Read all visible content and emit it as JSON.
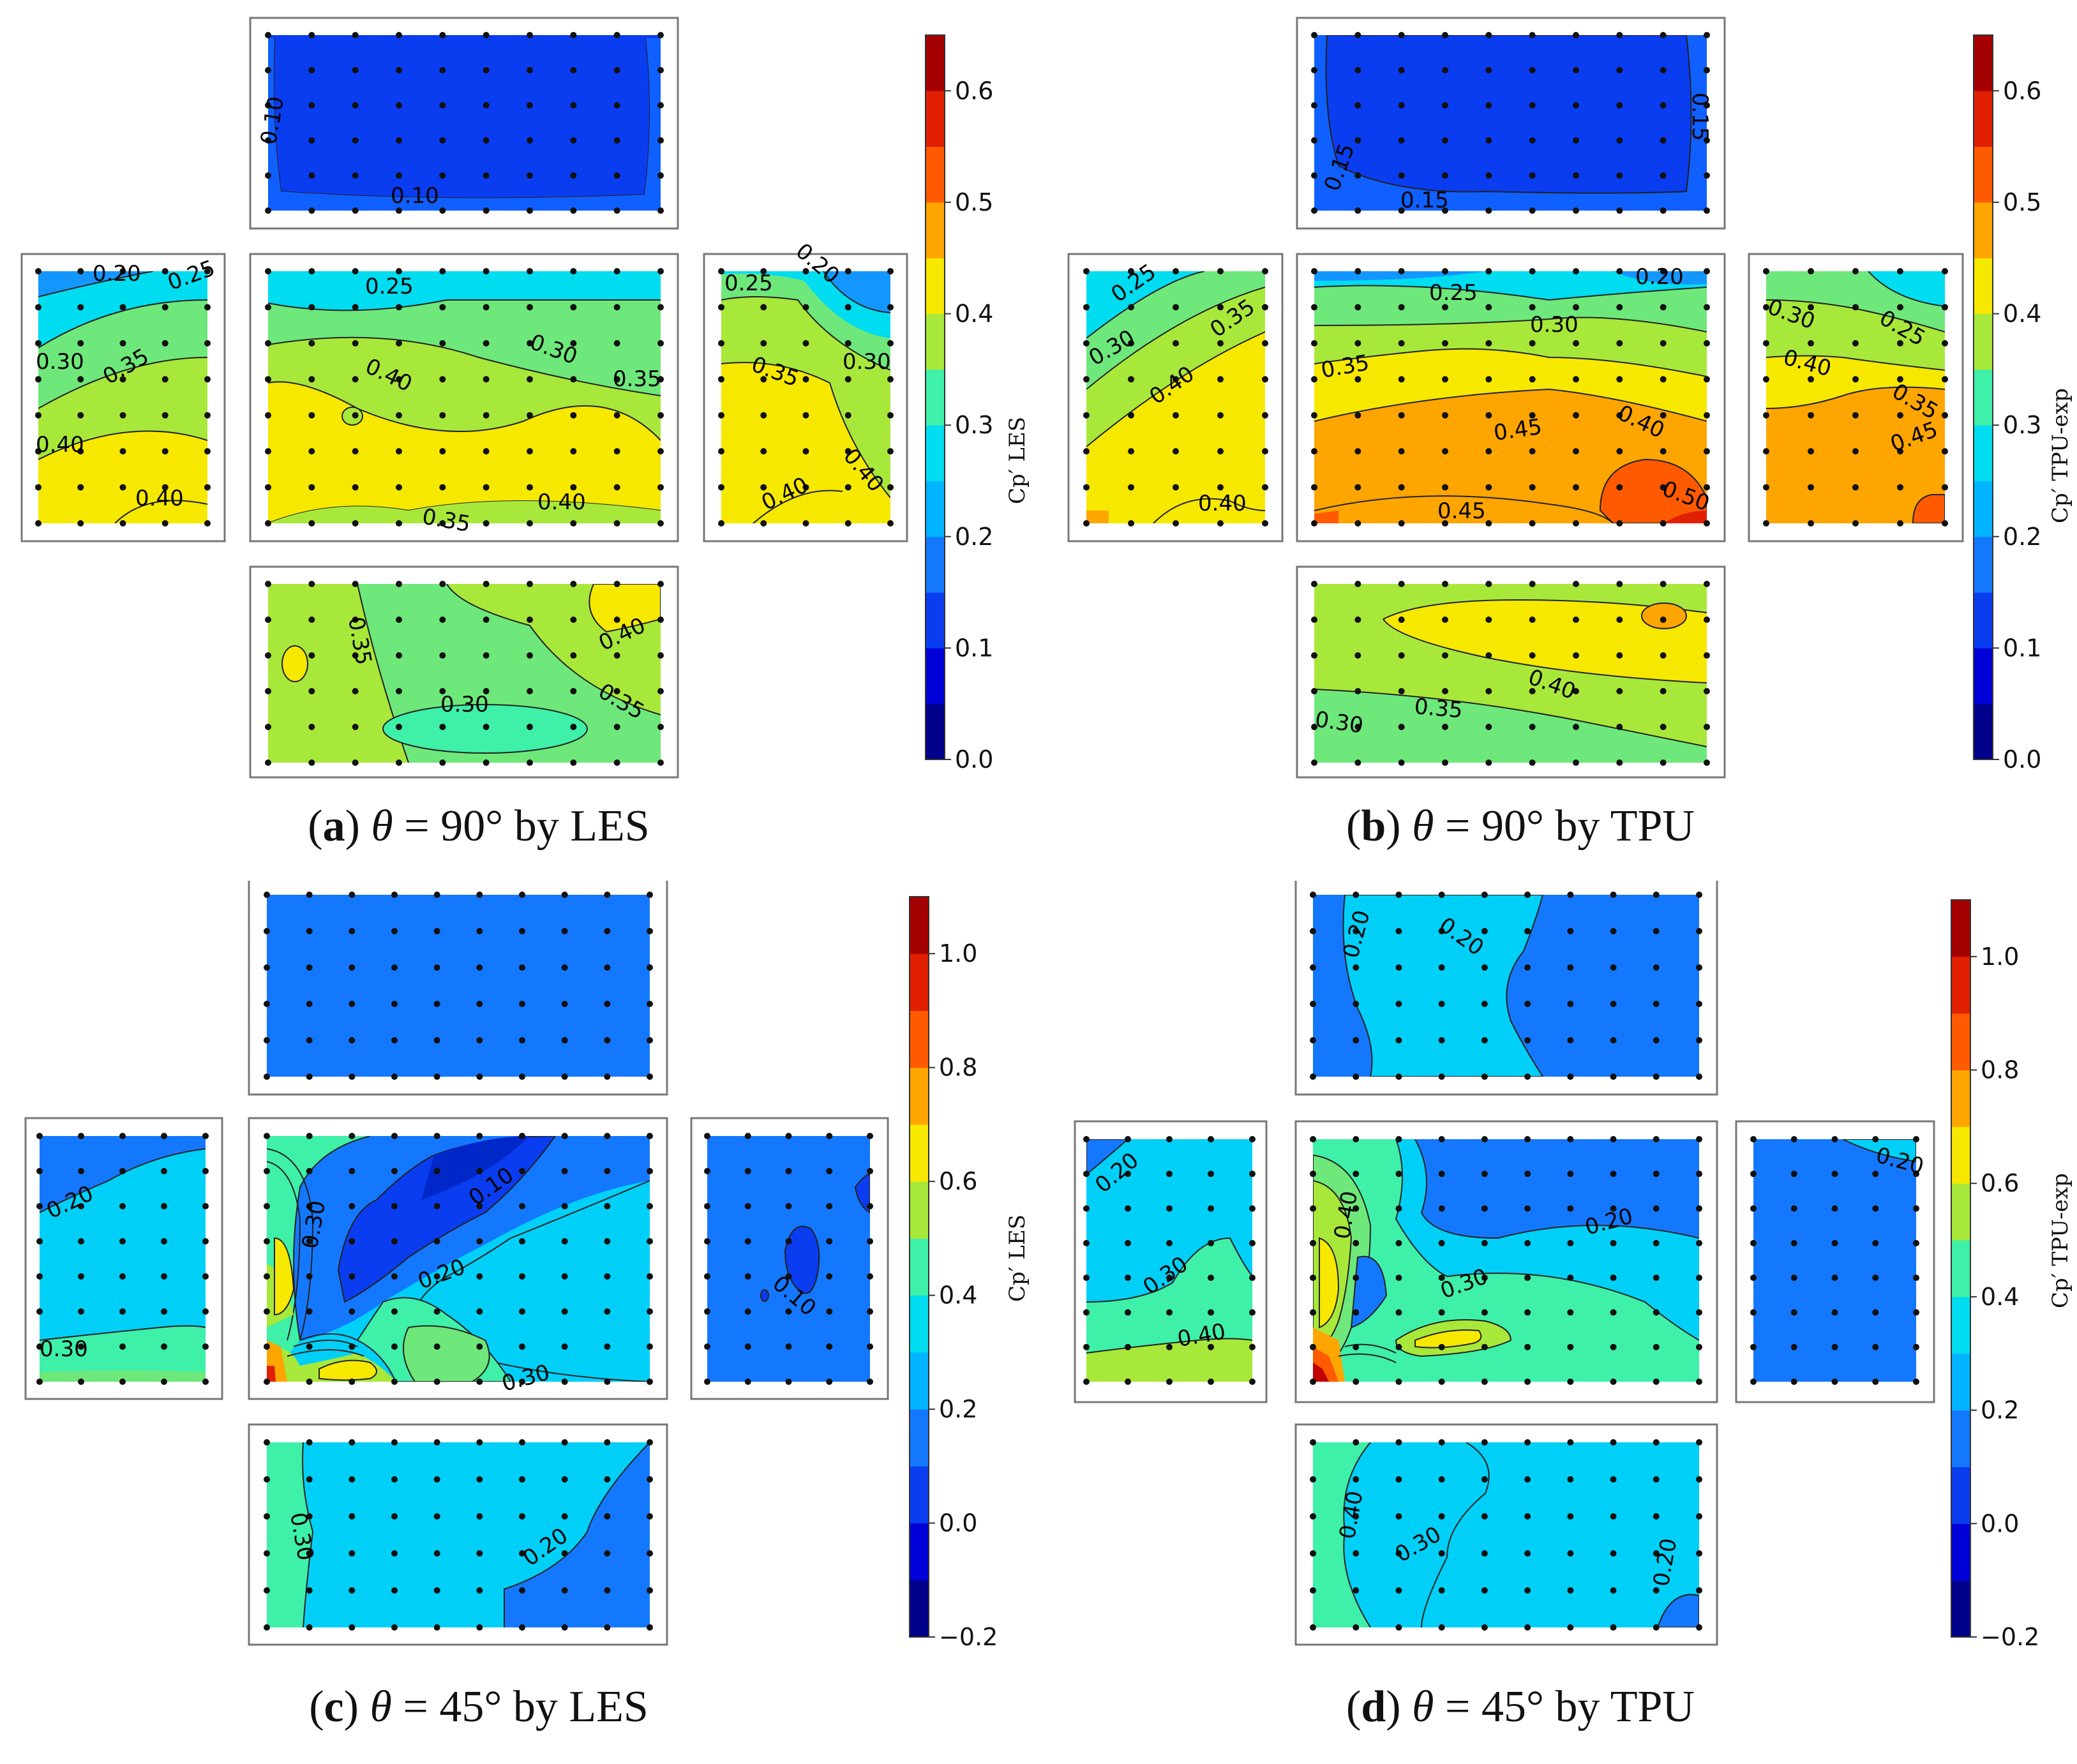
{
  "figure": {
    "panels": [
      {
        "id": "a",
        "letter": "a",
        "angle": "90°",
        "source": "LES",
        "caption_tail": "by LES"
      },
      {
        "id": "b",
        "letter": "b",
        "angle": "90°",
        "source": "TPU",
        "caption_tail": "by TPU"
      },
      {
        "id": "c",
        "letter": "c",
        "angle": "45°",
        "source": "LES",
        "caption_tail": "by LES"
      },
      {
        "id": "d",
        "letter": "d",
        "angle": "45°",
        "source": "TPU",
        "caption_tail": "by TPU"
      }
    ]
  },
  "chart_data": [
    {
      "type": "heatmap",
      "title": "(a) θ = 90° by LES",
      "colorbar_label": "Cp′ LES",
      "colorbar_range": [
        0.0,
        0.65
      ],
      "colorbar_ticks": [
        "0.0",
        "0.1",
        "0.2",
        "0.3",
        "0.4",
        "0.5",
        "0.6"
      ],
      "faces": {
        "top": {
          "contours": [
            "0.10",
            "0.10"
          ],
          "mean_value": 0.08
        },
        "left": {
          "contours": [
            "0.20",
            "0.25",
            "0.30",
            "0.35",
            "0.40",
            "0.40"
          ],
          "mean_value": 0.32
        },
        "front": {
          "contours": [
            "0.25",
            "0.30",
            "0.35",
            "0.40",
            "0.40",
            "0.35"
          ],
          "mean_value": 0.37
        },
        "right": {
          "contours": [
            "0.25",
            "0.20",
            "0.35",
            "0.30",
            "0.40",
            "0.40"
          ],
          "mean_value": 0.34
        },
        "bottom": {
          "contours": [
            "0.35",
            "0.40",
            "0.35",
            "0.30"
          ],
          "mean_value": 0.35
        }
      }
    },
    {
      "type": "heatmap",
      "title": "(b) θ = 90° by TPU",
      "colorbar_label": "Cp′ TPU-exp",
      "colorbar_range": [
        0.0,
        0.65
      ],
      "colorbar_ticks": [
        "0.0",
        "0.1",
        "0.2",
        "0.3",
        "0.4",
        "0.5",
        "0.6"
      ],
      "faces": {
        "top": {
          "contours": [
            "0.15",
            "0.15",
            "0.15"
          ],
          "mean_value": 0.12
        },
        "left": {
          "contours": [
            "0.25",
            "0.30",
            "0.35",
            "0.40",
            "0.40"
          ],
          "mean_value": 0.36
        },
        "front": {
          "contours": [
            "0.25",
            "0.20",
            "0.30",
            "0.35",
            "0.40",
            "0.45",
            "0.50",
            "0.45"
          ],
          "mean_value": 0.4
        },
        "right": {
          "contours": [
            "0.30",
            "0.25",
            "0.40",
            "0.35",
            "0.45"
          ],
          "mean_value": 0.38
        },
        "bottom": {
          "contours": [
            "0.40",
            "0.35",
            "0.30"
          ],
          "mean_value": 0.37
        }
      }
    },
    {
      "type": "heatmap",
      "title": "(c) θ = 45° by LES",
      "colorbar_label": "Cp′ LES",
      "colorbar_range": [
        -0.2,
        1.1
      ],
      "colorbar_ticks": [
        "−0.2",
        "0.0",
        "0.2",
        "0.4",
        "0.6",
        "0.8",
        "1.0"
      ],
      "faces": {
        "top": {
          "contours": [],
          "mean_value": 0.15
        },
        "left": {
          "contours": [
            "0.20",
            "0.30"
          ],
          "mean_value": 0.24
        },
        "front": {
          "contours": [
            "0.30",
            "0.10",
            "0.20",
            "0.30"
          ],
          "mean_value": 0.28
        },
        "right": {
          "contours": [
            "0.10"
          ],
          "mean_value": 0.15
        },
        "bottom": {
          "contours": [
            "0.30",
            "0.20"
          ],
          "mean_value": 0.25
        }
      }
    },
    {
      "type": "heatmap",
      "title": "(d) θ = 45° by TPU",
      "colorbar_label": "Cp′ TPU-exp",
      "colorbar_range": [
        -0.2,
        1.1
      ],
      "colorbar_ticks": [
        "−0.2",
        "0.0",
        "0.2",
        "0.4",
        "0.6",
        "0.8",
        "1.0"
      ],
      "faces": {
        "top": {
          "contours": [
            "0.20",
            "0.20"
          ],
          "mean_value": 0.19
        },
        "left": {
          "contours": [
            "0.20",
            "0.30",
            "0.40"
          ],
          "mean_value": 0.28
        },
        "front": {
          "contours": [
            "0.40",
            "0.30",
            "0.20"
          ],
          "mean_value": 0.25
        },
        "right": {
          "contours": [
            "0.20"
          ],
          "mean_value": 0.16
        },
        "bottom": {
          "contours": [
            "0.40",
            "0.30",
            "0.20"
          ],
          "mean_value": 0.27
        }
      }
    }
  ],
  "colors": {
    "jet_dark_blue": "#00008b",
    "jet_red": "#a50000",
    "frame": "#777777"
  }
}
